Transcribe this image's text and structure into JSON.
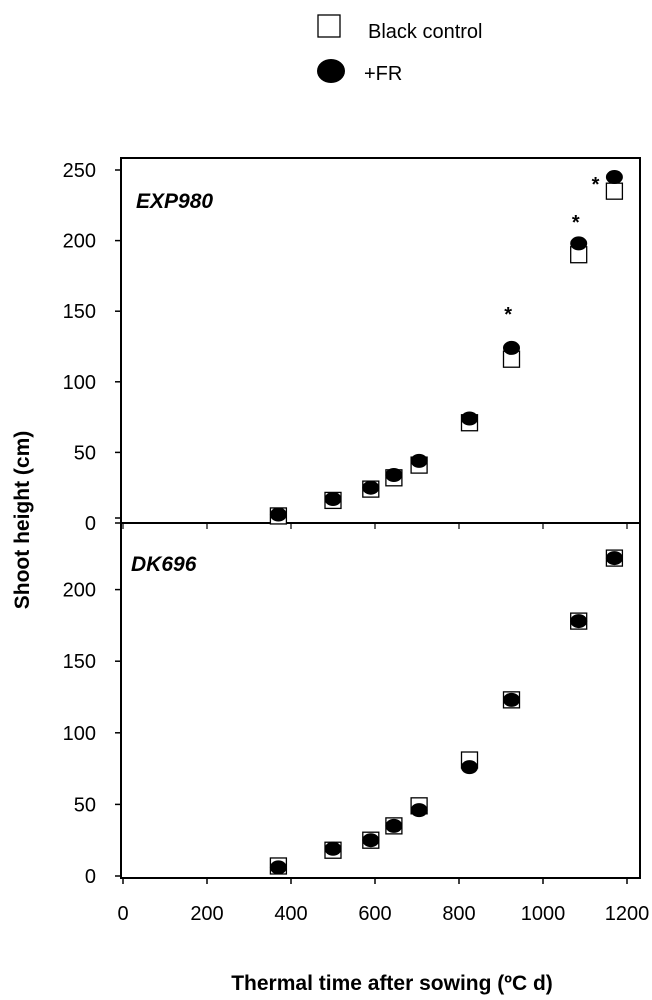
{
  "chart_data": {
    "type": "scatter",
    "xlabel": "Thermal time after sowing (ºC d)",
    "ylabel": "Shoot height (cm)",
    "xlim": [
      0,
      1200
    ],
    "x_ticks": [
      "0",
      "200",
      "400",
      "600",
      "800",
      "1000",
      "1200"
    ],
    "legend": {
      "placement": "top-center",
      "entries": [
        {
          "label": "Black control",
          "marker": "open-square"
        },
        {
          "label": "+FR",
          "marker": "filled-circle"
        }
      ]
    },
    "panels": [
      {
        "label": "EXP980",
        "ylim": [
          0,
          250
        ],
        "y_ticks": [
          "0",
          "50",
          "100",
          "150",
          "200",
          "250"
        ],
        "series": [
          {
            "name": "Black control",
            "marker": "open-square",
            "x": [
              370,
              500,
              590,
              645,
              705,
              825,
              925,
              1085,
              1170
            ],
            "y": [
              5,
              16,
              24,
              32,
              41,
              71,
              116,
              190,
              235
            ]
          },
          {
            "name": "+FR",
            "marker": "filled-circle",
            "x": [
              370,
              500,
              590,
              645,
              705,
              825,
              925,
              1085,
              1170
            ],
            "y": [
              6,
              17,
              25,
              34,
              44,
              74,
              124,
              198,
              245
            ]
          }
        ],
        "significance": [
          {
            "x": 917,
            "y": 148,
            "text": "*"
          },
          {
            "x": 1078,
            "y": 213,
            "text": "*"
          },
          {
            "x": 1125,
            "y": 240,
            "text": "*"
          }
        ]
      },
      {
        "label": "DK696",
        "ylim": [
          0,
          250
        ],
        "y_ticks": [
          "0",
          "50",
          "100",
          "150",
          "200",
          ""
        ],
        "series": [
          {
            "name": "Black control",
            "marker": "open-square",
            "x": [
              370,
              500,
              590,
              645,
              705,
              825,
              925,
              1085,
              1170
            ],
            "y": [
              7,
              18,
              25,
              35,
              49,
              81,
              123,
              178,
              222
            ]
          },
          {
            "name": "+FR",
            "marker": "filled-circle",
            "x": [
              370,
              500,
              590,
              645,
              705,
              825,
              925,
              1085,
              1170
            ],
            "y": [
              6,
              19,
              25,
              35,
              46,
              76,
              123,
              178,
              222
            ]
          }
        ],
        "significance": []
      }
    ]
  }
}
